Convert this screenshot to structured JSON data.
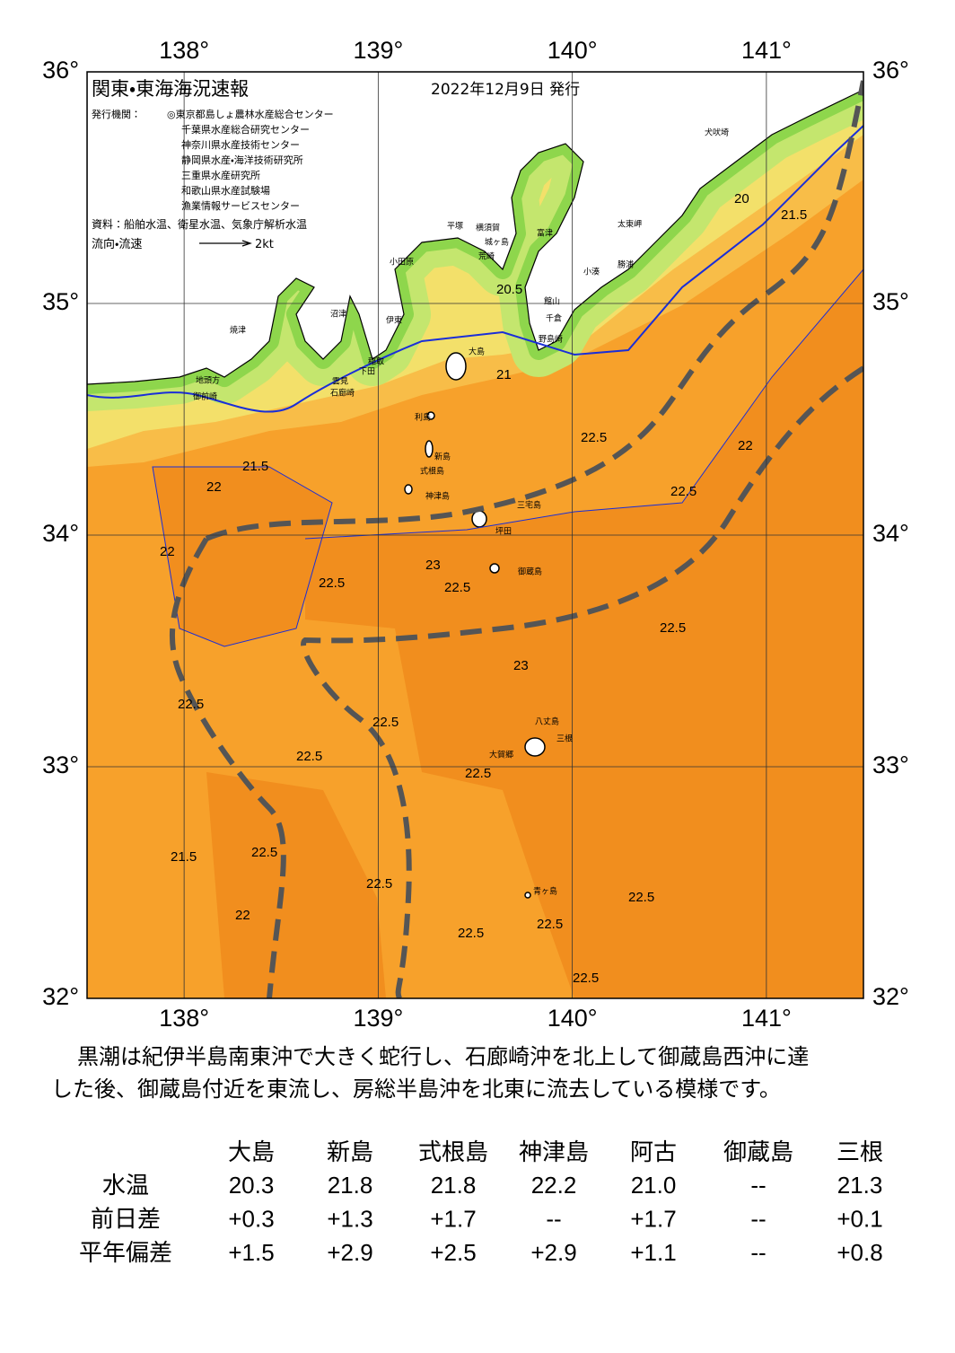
{
  "map": {
    "title": "関東・東海海況速報",
    "date": "2022年12月9日 発行",
    "issuer_label": "発行機関：",
    "issuers": [
      "◎東京都島しょ農林水産総合センター",
      "千葉県水産総合研究センター",
      "神奈川県水産技術センター",
      "静岡県水産・海洋技術研究所",
      "三重県水産研究所",
      "和歌山県水産試験場",
      "漁業情報サービスセンター"
    ],
    "source": "資料：船舶水温、衛星水温、気象庁解析水温",
    "legend_label": "流向・流速",
    "legend_scale": "2kt",
    "xlim": [
      137.5,
      141.5
    ],
    "ylim": [
      32,
      36
    ],
    "xticks": [
      {
        "value": 138,
        "label": "138°"
      },
      {
        "value": 139,
        "label": "139°"
      },
      {
        "value": 140,
        "label": "140°"
      },
      {
        "value": 141,
        "label": "141°"
      }
    ],
    "yticks": [
      {
        "value": 36,
        "label": "36°"
      },
      {
        "value": 35,
        "label": "35°"
      },
      {
        "value": 34,
        "label": "34°"
      },
      {
        "value": 33,
        "label": "33°"
      },
      {
        "value": 32,
        "label": "32°"
      }
    ],
    "place_names": [
      "犬吠埼",
      "太東岬",
      "勝浦",
      "小湊",
      "富津",
      "館山",
      "千倉",
      "野島崎",
      "横須賀",
      "城ヶ島",
      "平塚",
      "小田原",
      "荒崎",
      "伊東",
      "稲取",
      "下田",
      "石廊崎",
      "雲見",
      "御前崎",
      "地頭方",
      "焼津",
      "沼津",
      "大島",
      "利島",
      "新島",
      "式根島",
      "神津島",
      "三宅島",
      "坪田",
      "御蔵島",
      "八丈島",
      "三根",
      "大賀郷",
      "青ヶ島"
    ],
    "contour_labels": [
      22,
      22,
      21.5,
      22.5,
      22.5,
      22.5,
      22.5,
      22.5,
      22.5,
      22.5,
      22.5,
      22.5,
      22.5,
      23,
      23,
      22,
      21,
      20.5,
      21.5,
      20,
      22.5,
      22.5,
      22.5,
      22,
      21.5,
      22.5,
      22.5
    ]
  },
  "description": [
    "　黒潮は紀伊半島南東沖で大きく蛇行し、石廊崎沖を北上して御蔵島西沖に達",
    "した後、御蔵島付近を東流し、房総半島沖を北東に流去している模様です。"
  ],
  "table": {
    "columns": [
      "大島",
      "新島",
      "式根島",
      "神津島",
      "阿古",
      "御蔵島",
      "三根"
    ],
    "rows": [
      [
        "水温",
        "20.3",
        "21.8",
        "21.8",
        "22.2",
        "21.0",
        "--",
        "21.3"
      ],
      [
        "前日差",
        "+0.3",
        "+1.3",
        "+1.7",
        "--",
        "+1.7",
        "--",
        "+0.1"
      ],
      [
        "平年偏差",
        "+1.5",
        "+2.9",
        "+2.5",
        "+2.9",
        "+1.1",
        "--",
        "+0.8"
      ]
    ]
  }
}
